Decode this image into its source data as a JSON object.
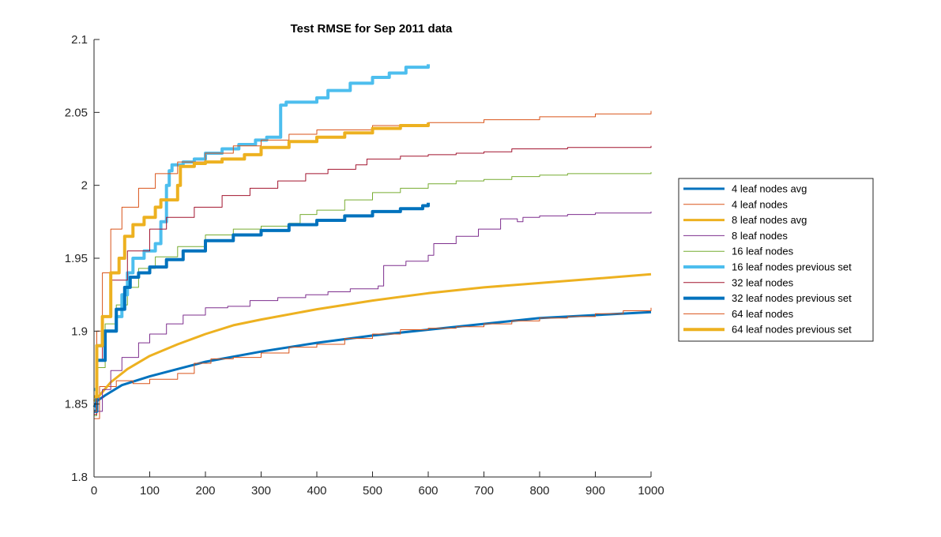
{
  "chart_data": {
    "type": "line",
    "title": "Test RMSE for Sep 2011 data",
    "xlabel": "",
    "ylabel": "",
    "xlim": [
      0,
      1000
    ],
    "ylim": [
      1.8,
      2.1
    ],
    "x_ticks": [
      0,
      100,
      200,
      300,
      400,
      500,
      600,
      700,
      800,
      900,
      1000
    ],
    "x_tick_labels": [
      "0",
      "100",
      "200",
      "300",
      "400",
      "500",
      "600",
      "700",
      "800",
      "900",
      "1000"
    ],
    "y_ticks": [
      1.8,
      1.85,
      1.9,
      1.95,
      2.0,
      2.05,
      2.1
    ],
    "y_tick_labels": [
      "1.8",
      "1.85",
      "1.9",
      "1.95",
      "2",
      "2.05",
      "2.1"
    ],
    "grid": false,
    "legend_position": "outside-right",
    "series": [
      {
        "name": "4 leaf nodes avg",
        "color": "#0072BD",
        "width": 3,
        "step": false,
        "points": [
          [
            0,
            1.848
          ],
          [
            5,
            1.852
          ],
          [
            20,
            1.856
          ],
          [
            50,
            1.863
          ],
          [
            100,
            1.869
          ],
          [
            150,
            1.874
          ],
          [
            200,
            1.879
          ],
          [
            300,
            1.886
          ],
          [
            400,
            1.892
          ],
          [
            500,
            1.897
          ],
          [
            600,
            1.901
          ],
          [
            700,
            1.905
          ],
          [
            800,
            1.909
          ],
          [
            900,
            1.911
          ],
          [
            1000,
            1.913
          ]
        ]
      },
      {
        "name": "4 leaf nodes",
        "color": "#D95319",
        "width": 1,
        "step": true,
        "points": [
          [
            0,
            1.84
          ],
          [
            10,
            1.862
          ],
          [
            40,
            1.866
          ],
          [
            70,
            1.864
          ],
          [
            100,
            1.867
          ],
          [
            150,
            1.871
          ],
          [
            180,
            1.878
          ],
          [
            210,
            1.881
          ],
          [
            250,
            1.882
          ],
          [
            300,
            1.885
          ],
          [
            350,
            1.889
          ],
          [
            400,
            1.891
          ],
          [
            450,
            1.895
          ],
          [
            500,
            1.898
          ],
          [
            550,
            1.901
          ],
          [
            600,
            1.902
          ],
          [
            650,
            1.903
          ],
          [
            700,
            1.905
          ],
          [
            750,
            1.907
          ],
          [
            800,
            1.909
          ],
          [
            850,
            1.91
          ],
          [
            900,
            1.912
          ],
          [
            950,
            1.914
          ],
          [
            1000,
            1.916
          ]
        ]
      },
      {
        "name": "8 leaf nodes avg",
        "color": "#EDB120",
        "width": 3,
        "step": false,
        "points": [
          [
            0,
            1.852
          ],
          [
            10,
            1.856
          ],
          [
            30,
            1.865
          ],
          [
            60,
            1.874
          ],
          [
            100,
            1.883
          ],
          [
            150,
            1.891
          ],
          [
            200,
            1.898
          ],
          [
            250,
            1.904
          ],
          [
            300,
            1.908
          ],
          [
            400,
            1.915
          ],
          [
            500,
            1.921
          ],
          [
            600,
            1.926
          ],
          [
            700,
            1.93
          ],
          [
            800,
            1.933
          ],
          [
            900,
            1.936
          ],
          [
            1000,
            1.939
          ]
        ]
      },
      {
        "name": "8 leaf nodes",
        "color": "#7E2F8E",
        "width": 1,
        "step": true,
        "points": [
          [
            0,
            1.845
          ],
          [
            15,
            1.86
          ],
          [
            30,
            1.873
          ],
          [
            50,
            1.882
          ],
          [
            80,
            1.892
          ],
          [
            100,
            1.898
          ],
          [
            130,
            1.905
          ],
          [
            160,
            1.911
          ],
          [
            200,
            1.916
          ],
          [
            240,
            1.917
          ],
          [
            280,
            1.921
          ],
          [
            330,
            1.923
          ],
          [
            380,
            1.925
          ],
          [
            420,
            1.927
          ],
          [
            460,
            1.929
          ],
          [
            510,
            1.931
          ],
          [
            520,
            1.945
          ],
          [
            560,
            1.948
          ],
          [
            600,
            1.952
          ],
          [
            610,
            1.96
          ],
          [
            650,
            1.965
          ],
          [
            690,
            1.97
          ],
          [
            730,
            1.977
          ],
          [
            760,
            1.975
          ],
          [
            770,
            1.978
          ],
          [
            800,
            1.979
          ],
          [
            850,
            1.98
          ],
          [
            900,
            1.981
          ],
          [
            1000,
            1.982
          ]
        ]
      },
      {
        "name": "16 leaf nodes",
        "color": "#77AC30",
        "width": 1,
        "step": true,
        "points": [
          [
            0,
            1.842
          ],
          [
            5,
            1.875
          ],
          [
            20,
            1.905
          ],
          [
            40,
            1.918
          ],
          [
            60,
            1.93
          ],
          [
            80,
            1.943
          ],
          [
            110,
            1.951
          ],
          [
            150,
            1.958
          ],
          [
            200,
            1.966
          ],
          [
            250,
            1.97
          ],
          [
            300,
            1.972
          ],
          [
            350,
            1.974
          ],
          [
            370,
            1.98
          ],
          [
            400,
            1.983
          ],
          [
            450,
            1.99
          ],
          [
            500,
            1.995
          ],
          [
            550,
            1.998
          ],
          [
            600,
            2.001
          ],
          [
            650,
            2.003
          ],
          [
            700,
            2.004
          ],
          [
            750,
            2.006
          ],
          [
            800,
            2.007
          ],
          [
            850,
            2.008
          ],
          [
            900,
            2.008
          ],
          [
            1000,
            2.009
          ]
        ]
      },
      {
        "name": "16 leaf nodes previous set",
        "color": "#4DBEEE",
        "width": 4,
        "step": true,
        "points": [
          [
            0,
            1.86
          ],
          [
            5,
            1.89
          ],
          [
            15,
            1.9
          ],
          [
            30,
            1.9
          ],
          [
            40,
            1.91
          ],
          [
            50,
            1.925
          ],
          [
            60,
            1.94
          ],
          [
            70,
            1.95
          ],
          [
            90,
            1.955
          ],
          [
            110,
            1.96
          ],
          [
            120,
            1.975
          ],
          [
            130,
            2.0
          ],
          [
            135,
            2.01
          ],
          [
            140,
            2.014
          ],
          [
            160,
            2.016
          ],
          [
            180,
            2.018
          ],
          [
            200,
            2.022
          ],
          [
            230,
            2.025
          ],
          [
            260,
            2.028
          ],
          [
            290,
            2.031
          ],
          [
            310,
            2.033
          ],
          [
            330,
            2.033
          ],
          [
            335,
            2.055
          ],
          [
            345,
            2.057
          ],
          [
            400,
            2.06
          ],
          [
            420,
            2.065
          ],
          [
            460,
            2.07
          ],
          [
            500,
            2.074
          ],
          [
            530,
            2.077
          ],
          [
            560,
            2.081
          ],
          [
            600,
            2.083
          ]
        ]
      },
      {
        "name": "32 leaf nodes",
        "color": "#A2142F",
        "width": 1,
        "step": true,
        "points": [
          [
            0,
            1.843
          ],
          [
            5,
            1.88
          ],
          [
            15,
            1.91
          ],
          [
            30,
            1.935
          ],
          [
            60,
            1.955
          ],
          [
            100,
            1.97
          ],
          [
            130,
            1.978
          ],
          [
            180,
            1.985
          ],
          [
            230,
            1.993
          ],
          [
            280,
            1.998
          ],
          [
            330,
            2.003
          ],
          [
            380,
            2.008
          ],
          [
            420,
            2.011
          ],
          [
            470,
            2.014
          ],
          [
            490,
            2.018
          ],
          [
            550,
            2.02
          ],
          [
            600,
            2.021
          ],
          [
            650,
            2.022
          ],
          [
            700,
            2.023
          ],
          [
            750,
            2.025
          ],
          [
            800,
            2.025
          ],
          [
            850,
            2.026
          ],
          [
            900,
            2.026
          ],
          [
            1000,
            2.027
          ]
        ]
      },
      {
        "name": "32 leaf nodes previous set",
        "color": "#0072BD",
        "width": 4,
        "step": true,
        "points": [
          [
            0,
            1.845
          ],
          [
            5,
            1.88
          ],
          [
            20,
            1.9
          ],
          [
            40,
            1.915
          ],
          [
            55,
            1.93
          ],
          [
            65,
            1.937
          ],
          [
            80,
            1.94
          ],
          [
            100,
            1.944
          ],
          [
            130,
            1.949
          ],
          [
            160,
            1.955
          ],
          [
            200,
            1.962
          ],
          [
            250,
            1.966
          ],
          [
            300,
            1.969
          ],
          [
            350,
            1.973
          ],
          [
            400,
            1.976
          ],
          [
            450,
            1.979
          ],
          [
            500,
            1.982
          ],
          [
            550,
            1.984
          ],
          [
            590,
            1.986
          ],
          [
            600,
            1.988
          ]
        ]
      },
      {
        "name": "64 leaf nodes",
        "color": "#D95319",
        "width": 1,
        "step": true,
        "points": [
          [
            0,
            1.845
          ],
          [
            5,
            1.9
          ],
          [
            15,
            1.94
          ],
          [
            30,
            1.97
          ],
          [
            50,
            1.985
          ],
          [
            80,
            1.998
          ],
          [
            110,
            2.008
          ],
          [
            150,
            2.016
          ],
          [
            200,
            2.022
          ],
          [
            250,
            2.027
          ],
          [
            300,
            2.031
          ],
          [
            350,
            2.035
          ],
          [
            400,
            2.038
          ],
          [
            500,
            2.041
          ],
          [
            600,
            2.043
          ],
          [
            700,
            2.045
          ],
          [
            800,
            2.047
          ],
          [
            900,
            2.049
          ],
          [
            1000,
            2.051
          ]
        ]
      },
      {
        "name": "64 leaf nodes previous set",
        "color": "#EDB120",
        "width": 4,
        "step": true,
        "points": [
          [
            0,
            1.855
          ],
          [
            5,
            1.89
          ],
          [
            15,
            1.91
          ],
          [
            30,
            1.94
          ],
          [
            45,
            1.95
          ],
          [
            55,
            1.965
          ],
          [
            70,
            1.973
          ],
          [
            90,
            1.978
          ],
          [
            110,
            1.985
          ],
          [
            120,
            1.99
          ],
          [
            140,
            1.99
          ],
          [
            150,
            2.0
          ],
          [
            155,
            2.013
          ],
          [
            180,
            2.015
          ],
          [
            200,
            2.016
          ],
          [
            230,
            2.018
          ],
          [
            270,
            2.021
          ],
          [
            300,
            2.026
          ],
          [
            350,
            2.03
          ],
          [
            400,
            2.033
          ],
          [
            450,
            2.036
          ],
          [
            500,
            2.039
          ],
          [
            550,
            2.041
          ],
          [
            600,
            2.043
          ]
        ]
      }
    ]
  }
}
